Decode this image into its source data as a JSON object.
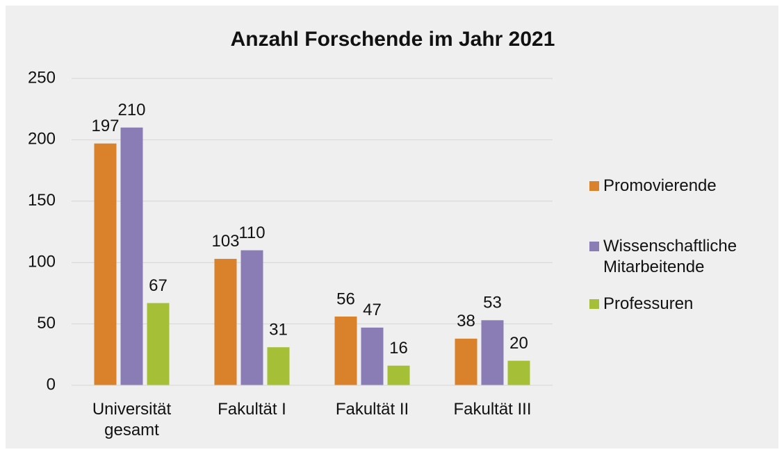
{
  "chart_data": {
    "type": "bar",
    "title": "Anzahl Forschende im Jahr 2021",
    "categories": [
      "Universität gesamt",
      "Fakultät I",
      "Fakultät II",
      "Fakultät III"
    ],
    "series": [
      {
        "name": "Promovierende",
        "color": "#d9822b",
        "values": [
          197,
          103,
          56,
          38
        ]
      },
      {
        "name": "Wissenschaftliche Mitarbeitende",
        "color": "#8a7db5",
        "values": [
          210,
          110,
          47,
          53
        ]
      },
      {
        "name": "Professuren",
        "color": "#a5c036",
        "values": [
          67,
          31,
          16,
          20
        ]
      }
    ],
    "ylim": [
      0,
      250
    ],
    "yticks": [
      0,
      50,
      100,
      150,
      200,
      250
    ],
    "grid": true,
    "legend": "right"
  }
}
